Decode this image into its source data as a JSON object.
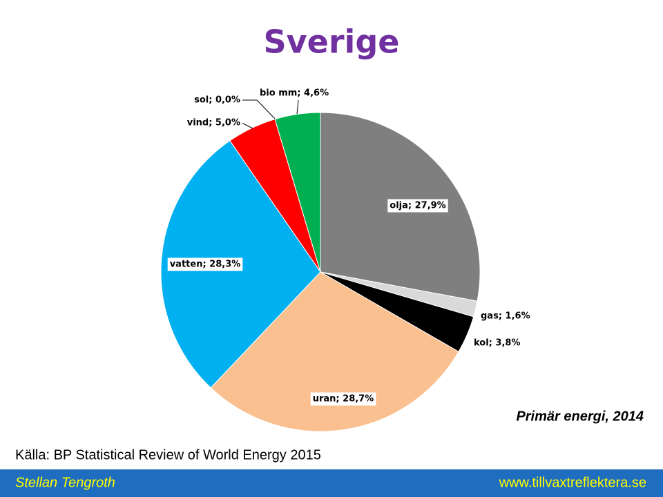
{
  "chart_data": {
    "type": "pie",
    "title": "Sverige",
    "annotation": "Primär energi, 2014",
    "source": "Källa: BP Statistical Review of World Energy 2015",
    "values": [
      27.9,
      1.6,
      3.8,
      28.7,
      28.3,
      5.0,
      0.0,
      4.6
    ],
    "value_labels": [
      "olja; 27,9%",
      "gas; 1,6%",
      "kol; 3,8%",
      "uran; 28,7%",
      "vatten; 28,3%",
      "vind; 5,0%",
      "sol; 0,0%",
      "bio mm; 4,6%"
    ],
    "colors": [
      "#7f7f7f",
      "#d9d9d9",
      "#000000",
      "#fac090",
      "#00b0f0",
      "#ff0000",
      "#ffff00",
      "#00b050"
    ]
  },
  "footer": {
    "author": "Stellan Tengroth",
    "url": "www.tillvaxtreflektera.se"
  }
}
